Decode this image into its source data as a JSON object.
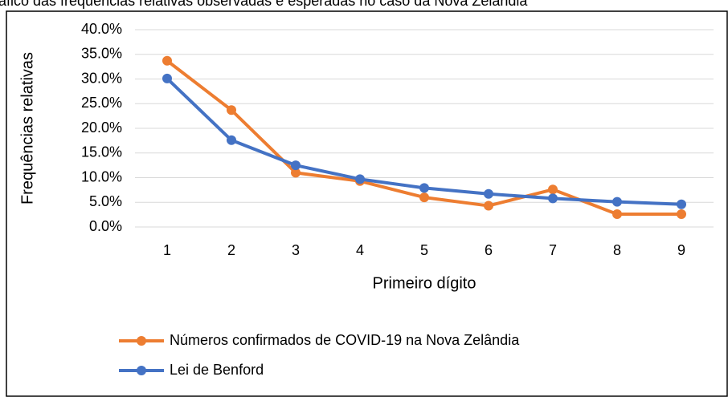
{
  "chart_data": {
    "type": "line",
    "title": "Gráfico das frequências relativas observadas e esperadas no caso da Nova Zelândia",
    "x_label": "Primeiro dígito",
    "y_label": "Frequências relativas",
    "categories": [
      1,
      2,
      3,
      4,
      5,
      6,
      7,
      8,
      9
    ],
    "series": [
      {
        "name": "Números confirmados de COVID-19 na Nova Zelândia",
        "color": "#ed7d31",
        "values": [
          33.7,
          23.7,
          11.0,
          9.3,
          6.0,
          4.3,
          7.6,
          2.6,
          2.6
        ]
      },
      {
        "name": "Lei de Benford",
        "color": "#4472c4",
        "values": [
          30.1,
          17.6,
          12.5,
          9.7,
          7.9,
          6.7,
          5.8,
          5.1,
          4.6
        ]
      }
    ],
    "ylim": [
      0,
      40
    ],
    "yticks": [
      {
        "value": 0,
        "label": "0.0%"
      },
      {
        "value": 5,
        "label": "5.0%"
      },
      {
        "value": 10,
        "label": "10.0%"
      },
      {
        "value": 15,
        "label": "15.0%"
      },
      {
        "value": 20,
        "label": "20.0%"
      },
      {
        "value": 25,
        "label": "25.0%"
      },
      {
        "value": 30,
        "label": "30.0%"
      },
      {
        "value": 35,
        "label": "35.0%"
      },
      {
        "value": 40,
        "label": "40.0%"
      }
    ],
    "grid": true,
    "legend": "bottom"
  }
}
